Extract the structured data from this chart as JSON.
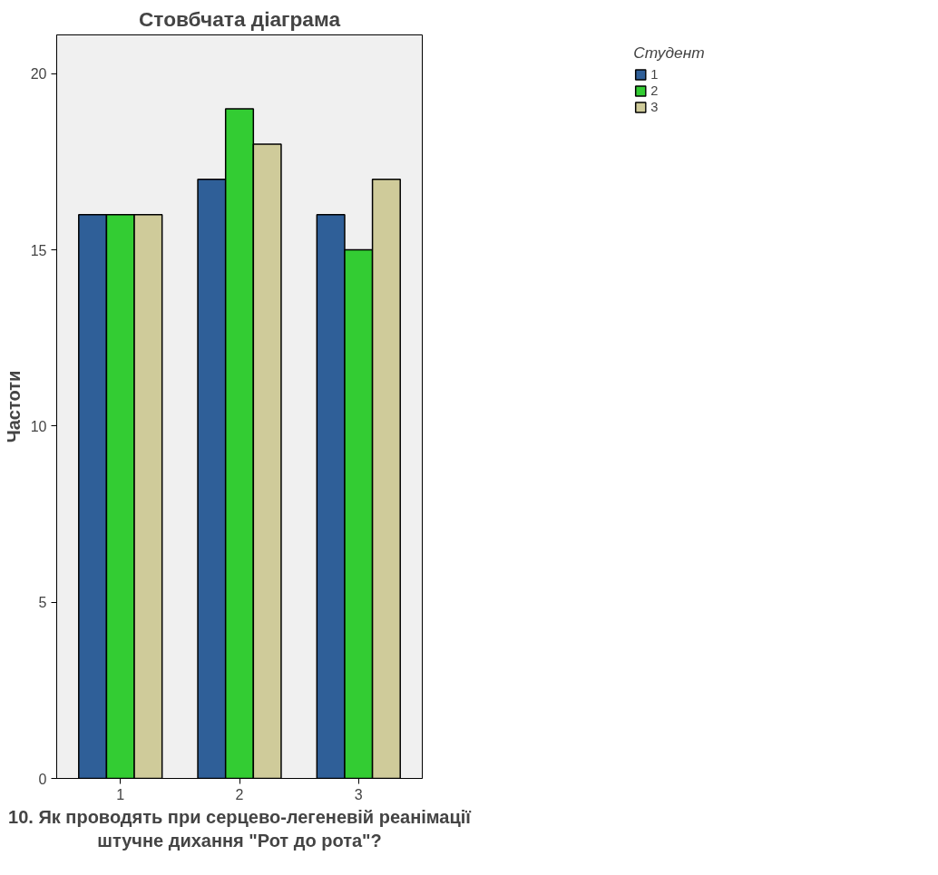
{
  "chart_data": {
    "type": "bar",
    "title": "Стовбчата діаграма",
    "xlabel": "10. Як проводять при серцево-легеневій реанімації\nштучне дихання \"Рот до рота\"?",
    "ylabel": "Частоти",
    "legend_title": "Студент",
    "categories": [
      "1",
      "2",
      "3"
    ],
    "series": [
      {
        "name": "1",
        "color": "#2f5f98",
        "values": [
          16,
          17,
          16
        ]
      },
      {
        "name": "2",
        "color": "#33cc33",
        "values": [
          16,
          19,
          15
        ]
      },
      {
        "name": "3",
        "color": "#cfcb9a",
        "values": [
          16,
          18,
          17
        ]
      }
    ],
    "ylim": [
      0,
      21.1
    ],
    "yticks": [
      0,
      5,
      10,
      15,
      20
    ],
    "grid": false,
    "legend": "top right"
  }
}
